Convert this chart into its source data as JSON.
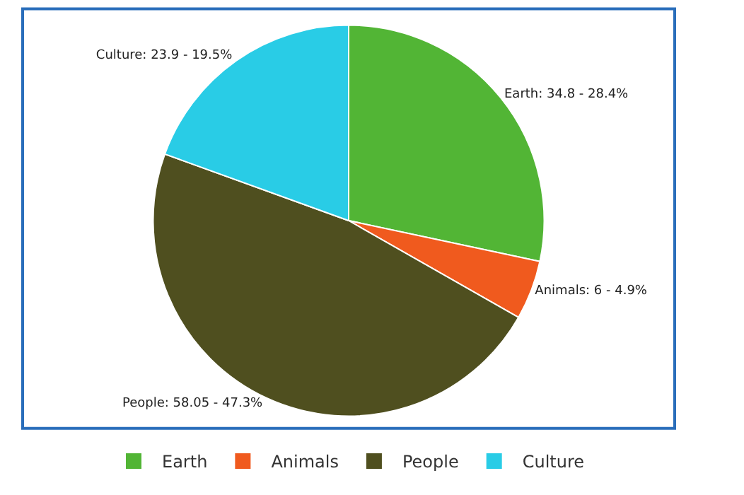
{
  "chart_data": {
    "type": "pie",
    "categories": [
      "Earth",
      "Animals",
      "People",
      "Culture"
    ],
    "values": [
      34.8,
      6,
      58.05,
      23.9
    ],
    "colors": [
      "#52b535",
      "#f05a1e",
      "#4f4f1f",
      "#29cce6"
    ],
    "value_labels": [
      "Earth: 34.8 - 28.4%",
      "Animals: 6 - 4.9%",
      "People: 58.05 - 47.3%",
      "Culture: 23.9 - 19.5%"
    ],
    "legend": "bottom"
  }
}
